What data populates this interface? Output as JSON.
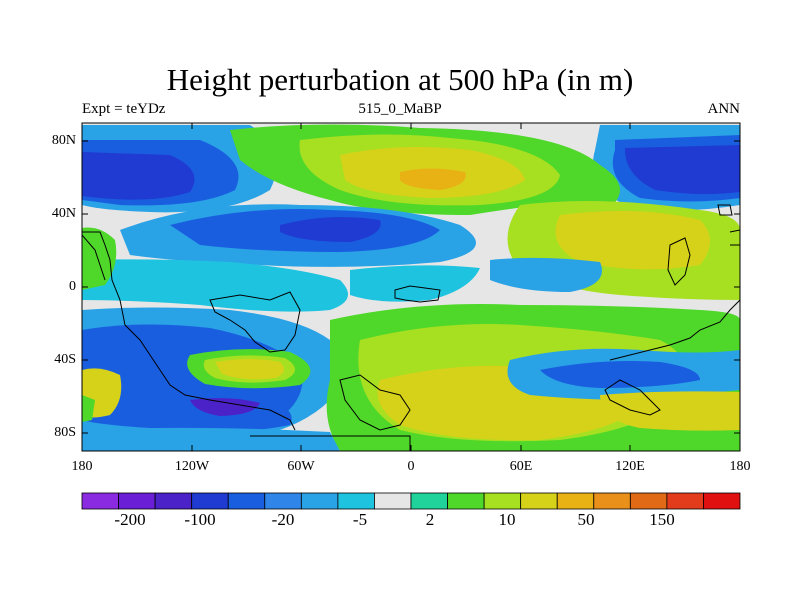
{
  "title": "Height perturbation at 500 hPa (in m)",
  "subtitle_left": "Expt = teYDz",
  "subtitle_center": "515_0_MaBP",
  "subtitle_right": "ANN",
  "lat_labels": [
    "80N",
    "40N",
    "0",
    "40S",
    "80S"
  ],
  "lon_labels": [
    "180",
    "120W",
    "60W",
    "0",
    "60E",
    "120E",
    "180"
  ],
  "colorbar": {
    "colors": [
      "#8a2be2",
      "#6a1fd6",
      "#4a22c8",
      "#1f3bd2",
      "#1a5ee0",
      "#2f86e8",
      "#2aa2e6",
      "#1ec3e0",
      "#e6e6e6",
      "#1fd39a",
      "#4fd82a",
      "#a6e021",
      "#d6d21a",
      "#e8b214",
      "#e8901a",
      "#e06a16",
      "#e23c1c",
      "#e01010"
    ],
    "labels": [
      "-200",
      "-100",
      "-20",
      "-5",
      "2",
      "10",
      "50",
      "150"
    ]
  }
}
